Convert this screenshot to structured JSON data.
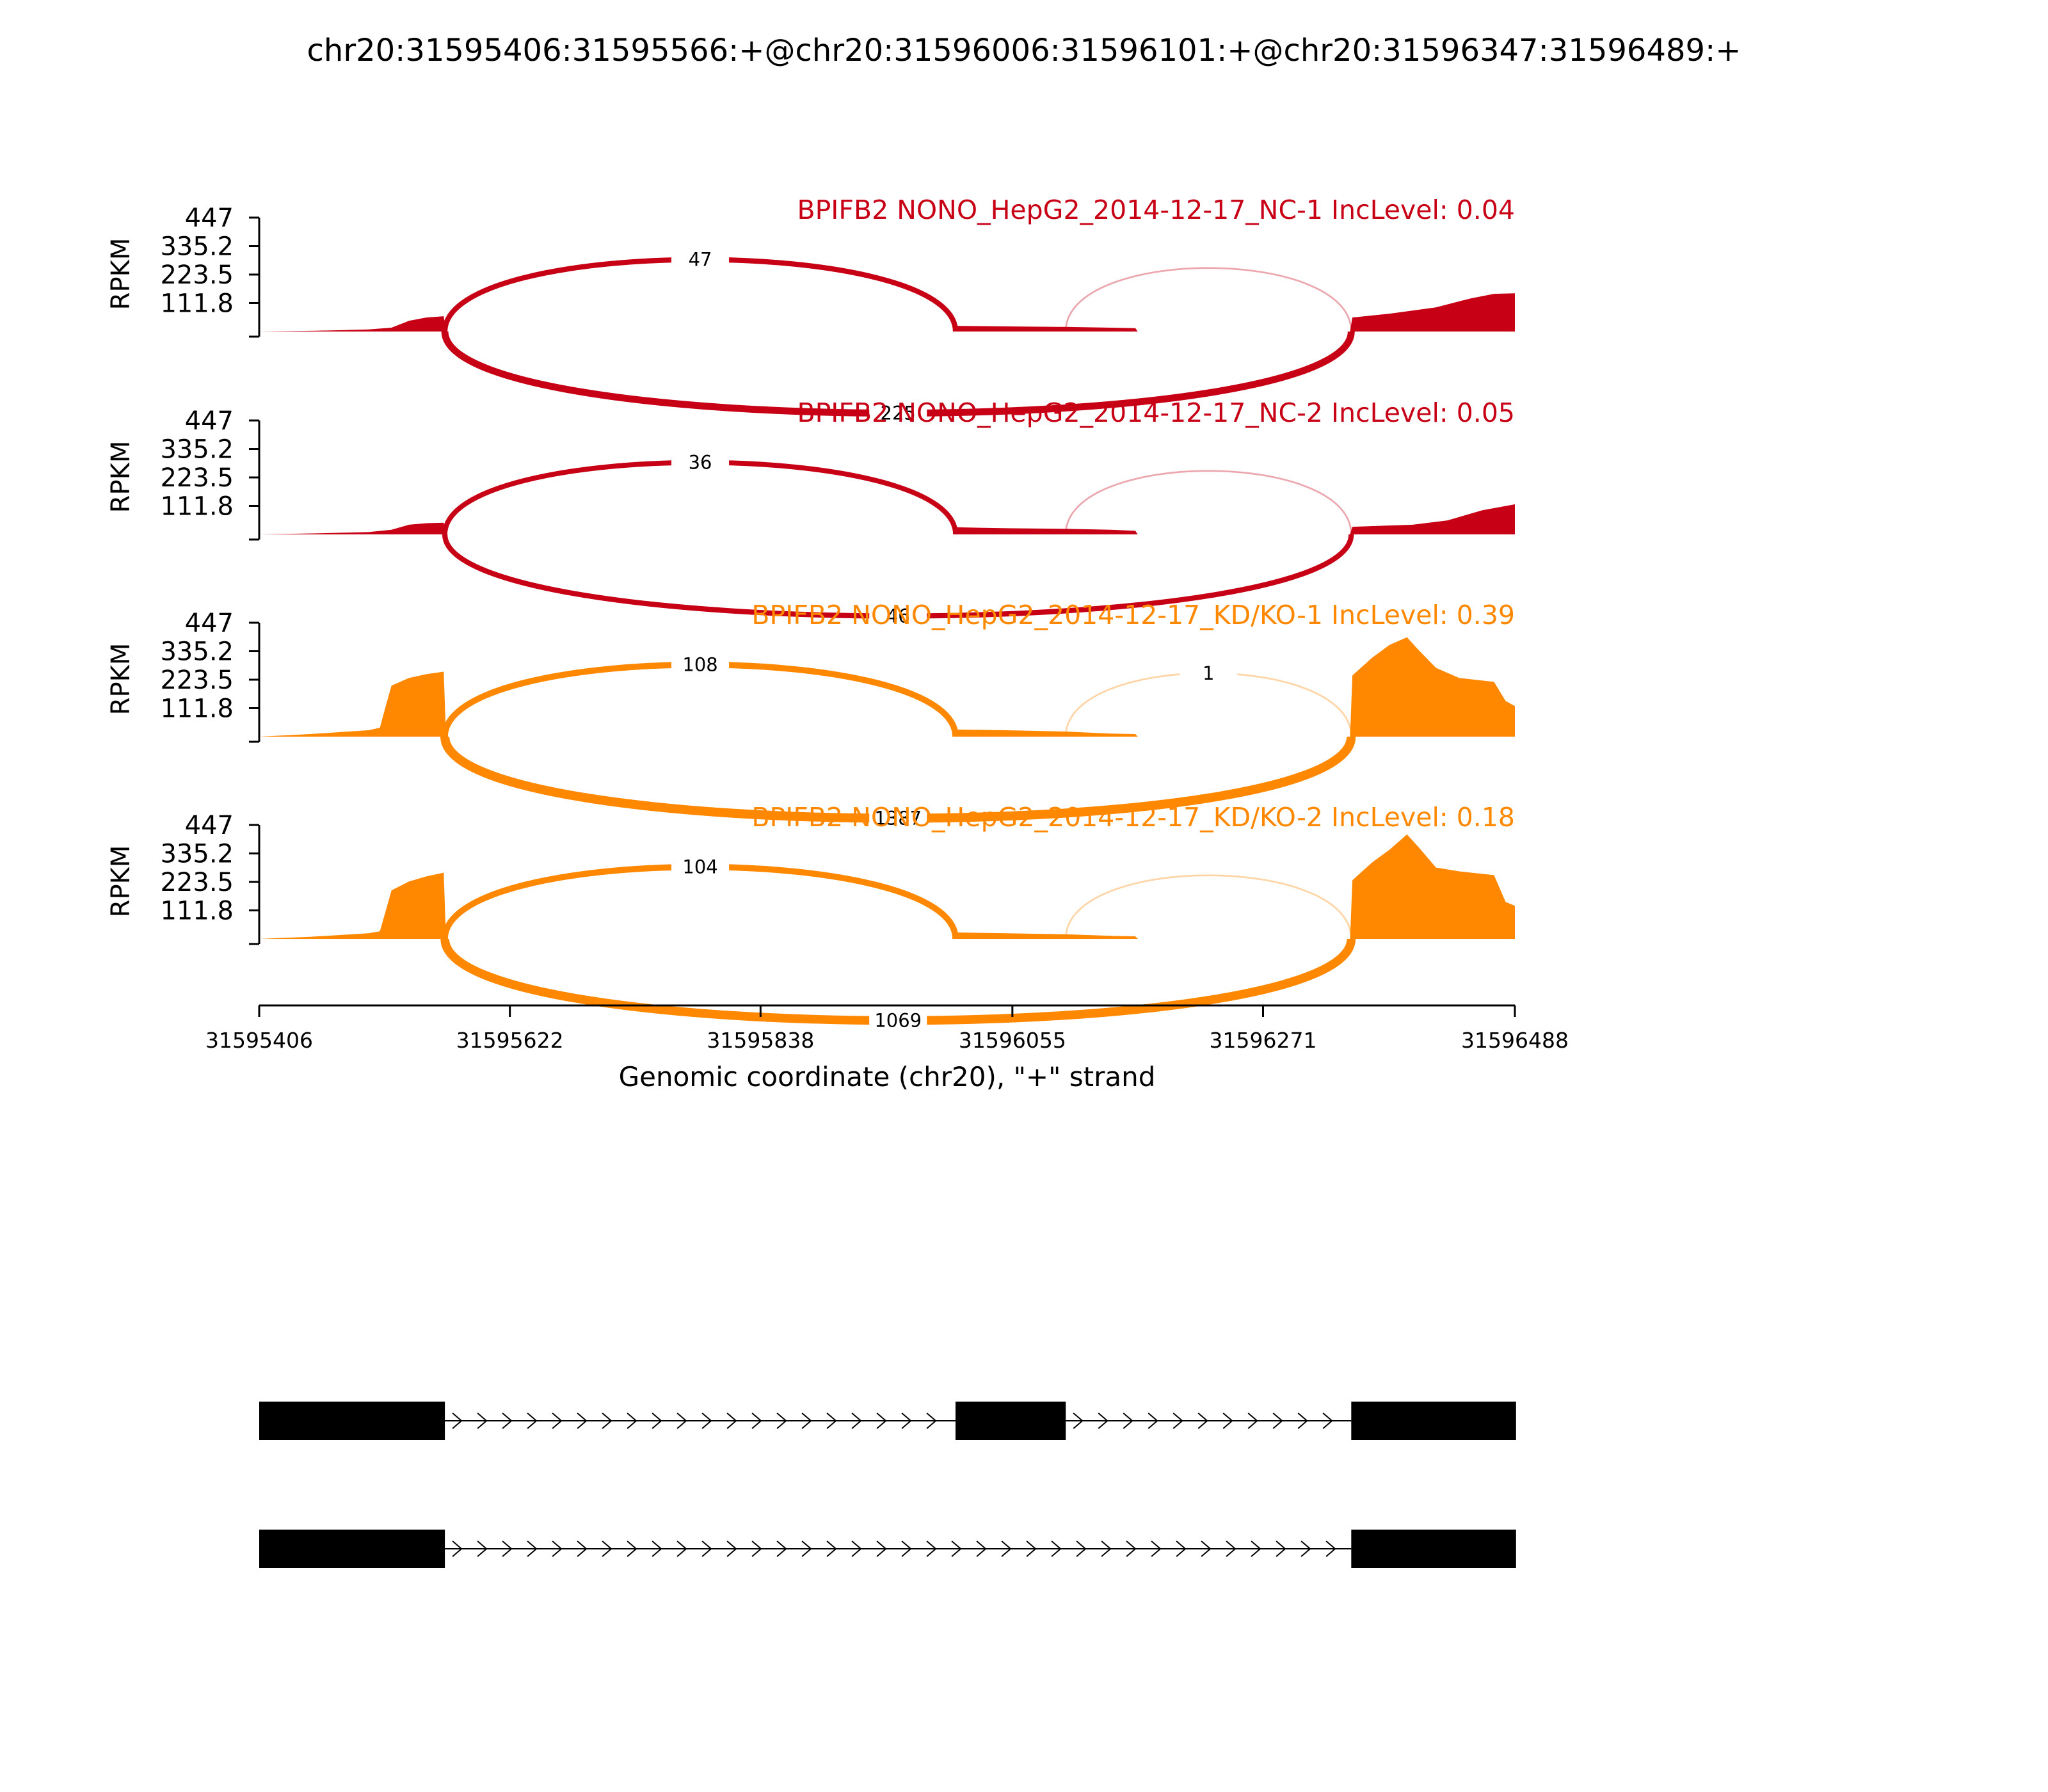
{
  "chart_data": {
    "type": "area",
    "title": "chr20:31595406:31595566:+@chr20:31596006:31596101:+@chr20:31596347:31596489:+",
    "xlabel": "Genomic coordinate (chr20), \"+\" strand",
    "ylabel": "RPKM",
    "xlim": [
      31595406,
      31596488
    ],
    "ylim": [
      0,
      447
    ],
    "x_ticks": [
      "31595406",
      "31595622",
      "31595838",
      "31596055",
      "31596271",
      "31596488"
    ],
    "y_ticks": [
      "447",
      "335.2",
      "223.5",
      "111.8"
    ],
    "exons": {
      "upstream": [
        31595406,
        31595566
      ],
      "skipped": [
        31596006,
        31596101
      ],
      "downstream": [
        31596347,
        31596489
      ]
    },
    "panels": [
      {
        "title": "BPIFB2 NONO_HepG2_2014-12-17_NC-1 IncLevel: 0.04",
        "color": "#c80015",
        "coverage": [
          [
            31595406,
            0
          ],
          [
            31595455,
            3
          ],
          [
            31595500,
            8
          ],
          [
            31595520,
            15
          ],
          [
            31595535,
            42
          ],
          [
            31595550,
            55
          ],
          [
            31595565,
            60
          ],
          [
            31595567,
            0
          ],
          [
            31596005,
            0
          ],
          [
            31596007,
            22
          ],
          [
            31596050,
            20
          ],
          [
            31596100,
            18
          ],
          [
            31596140,
            15
          ],
          [
            31596161,
            13
          ],
          [
            31596163,
            0
          ],
          [
            31596346,
            0
          ],
          [
            31596348,
            55
          ],
          [
            31596380,
            70
          ],
          [
            31596420,
            95
          ],
          [
            31596450,
            130
          ],
          [
            31596470,
            148
          ],
          [
            31596488,
            150
          ]
        ],
        "junctions": [
          {
            "from": 31595566,
            "to": 31596006,
            "count": "47",
            "side": "above"
          },
          {
            "from": 31596101,
            "to": 31596347,
            "count": "",
            "side": "above"
          },
          {
            "from": 31595566,
            "to": 31596347,
            "count": "225",
            "side": "below"
          }
        ]
      },
      {
        "title": "BPIFB2 NONO_HepG2_2014-12-17_NC-2 IncLevel: 0.05",
        "color": "#c80015",
        "coverage": [
          [
            31595406,
            0
          ],
          [
            31595455,
            4
          ],
          [
            31595500,
            9
          ],
          [
            31595520,
            18
          ],
          [
            31595535,
            38
          ],
          [
            31595550,
            44
          ],
          [
            31595565,
            46
          ],
          [
            31595567,
            0
          ],
          [
            31596005,
            0
          ],
          [
            31596007,
            28
          ],
          [
            31596050,
            24
          ],
          [
            31596100,
            22
          ],
          [
            31596140,
            18
          ],
          [
            31596161,
            14
          ],
          [
            31596163,
            0
          ],
          [
            31596346,
            0
          ],
          [
            31596348,
            30
          ],
          [
            31596400,
            38
          ],
          [
            31596430,
            55
          ],
          [
            31596460,
            95
          ],
          [
            31596488,
            118
          ]
        ],
        "junctions": [
          {
            "from": 31595566,
            "to": 31596006,
            "count": "36",
            "side": "above"
          },
          {
            "from": 31596101,
            "to": 31596347,
            "count": "",
            "side": "above"
          },
          {
            "from": 31595566,
            "to": 31596347,
            "count": "46",
            "side": "below"
          }
        ]
      },
      {
        "title": "BPIFB2 NONO_HepG2_2014-12-17_KD/KO-1 IncLevel: 0.39",
        "color": "#ff8800",
        "coverage": [
          [
            31595406,
            0
          ],
          [
            31595450,
            10
          ],
          [
            31595500,
            25
          ],
          [
            31595510,
            35
          ],
          [
            31595515,
            120
          ],
          [
            31595520,
            200
          ],
          [
            31595535,
            230
          ],
          [
            31595550,
            245
          ],
          [
            31595565,
            255
          ],
          [
            31595567,
            0
          ],
          [
            31596005,
            0
          ],
          [
            31596007,
            28
          ],
          [
            31596050,
            25
          ],
          [
            31596100,
            20
          ],
          [
            31596140,
            12
          ],
          [
            31596161,
            10
          ],
          [
            31596163,
            0
          ],
          [
            31596346,
            0
          ],
          [
            31596348,
            240
          ],
          [
            31596365,
            310
          ],
          [
            31596380,
            360
          ],
          [
            31596395,
            390
          ],
          [
            31596405,
            340
          ],
          [
            31596420,
            270
          ],
          [
            31596440,
            230
          ],
          [
            31596470,
            215
          ],
          [
            31596480,
            140
          ],
          [
            31596488,
            120
          ]
        ],
        "junctions": [
          {
            "from": 31595566,
            "to": 31596006,
            "count": "108",
            "side": "above"
          },
          {
            "from": 31596101,
            "to": 31596347,
            "count": "1",
            "side": "above"
          },
          {
            "from": 31595566,
            "to": 31596347,
            "count": "1387",
            "side": "below"
          }
        ]
      },
      {
        "title": "BPIFB2 NONO_HepG2_2014-12-17_KD/KO-2 IncLevel: 0.18",
        "color": "#ff8800",
        "coverage": [
          [
            31595406,
            0
          ],
          [
            31595450,
            8
          ],
          [
            31595500,
            22
          ],
          [
            31595510,
            30
          ],
          [
            31595515,
            110
          ],
          [
            31595520,
            190
          ],
          [
            31595535,
            225
          ],
          [
            31595550,
            245
          ],
          [
            31595565,
            260
          ],
          [
            31595567,
            0
          ],
          [
            31596005,
            0
          ],
          [
            31596007,
            25
          ],
          [
            31596050,
            22
          ],
          [
            31596100,
            18
          ],
          [
            31596140,
            12
          ],
          [
            31596161,
            10
          ],
          [
            31596163,
            0
          ],
          [
            31596346,
            0
          ],
          [
            31596348,
            230
          ],
          [
            31596365,
            300
          ],
          [
            31596380,
            350
          ],
          [
            31596395,
            410
          ],
          [
            31596405,
            360
          ],
          [
            31596420,
            280
          ],
          [
            31596440,
            265
          ],
          [
            31596470,
            250
          ],
          [
            31596480,
            145
          ],
          [
            31596488,
            130
          ]
        ],
        "junctions": [
          {
            "from": 31595566,
            "to": 31596006,
            "count": "104",
            "side": "above"
          },
          {
            "from": 31596101,
            "to": 31596347,
            "count": "",
            "side": "above"
          },
          {
            "from": 31595566,
            "to": 31596347,
            "count": "1069",
            "side": "below"
          }
        ]
      }
    ],
    "isoforms": [
      {
        "exons": [
          [
            31595406,
            31595566
          ],
          [
            31596006,
            31596101
          ],
          [
            31596347,
            31596489
          ]
        ]
      },
      {
        "exons": [
          [
            31595406,
            31595566
          ],
          [
            31596347,
            31596489
          ]
        ]
      }
    ]
  }
}
